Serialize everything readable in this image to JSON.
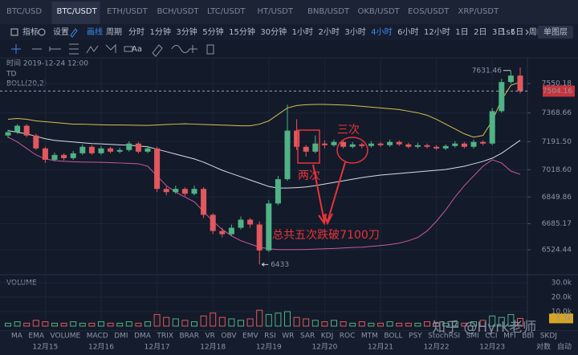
{
  "tabs": [
    "BTC/USD",
    "BTC/USDT",
    "ETH/USDT",
    "BCH/USDT",
    "LTC/USDT",
    "HT/USDT",
    "BNB/USDT",
    "OKB/USDT",
    "EOS/USDT",
    "XRP/USDT"
  ],
  "toolbar": {
    "indicator": "指标",
    "settings": "设置",
    "draw": "画线",
    "period": "周期",
    "intervals": [
      "分时",
      "1分钟",
      "3分钟",
      "5分钟",
      "15分钟",
      "30分钟",
      "1小时",
      "2小时",
      "3小时",
      "4小时",
      "6小时",
      "12小时",
      "1日",
      "2日",
      "3日",
      "5日",
      "周K"
    ],
    "speed": "1s",
    "layer": "单图层"
  },
  "chart_data": {
    "type": "candlestick",
    "time_label": "时间 2019-12-24 12:00",
    "indicator_td": "TD",
    "indicator_boll": "BOLL(20,2)",
    "categories": [
      null,
      null,
      null,
      null,
      "12月15",
      null,
      null,
      null,
      null,
      null,
      "12月16",
      null,
      null,
      null,
      null,
      null,
      "12月17",
      null,
      null,
      null,
      null,
      null,
      "12月18",
      null,
      null,
      null,
      null,
      null,
      "12月19",
      null,
      null,
      null,
      null,
      null,
      "12月20",
      null,
      null,
      null,
      null,
      null,
      "12月21",
      null,
      null,
      null,
      null,
      null,
      "12月22",
      null,
      null,
      null,
      null,
      null,
      "12月23",
      null,
      null,
      null
    ],
    "candles": [
      [
        7230,
        7265,
        7215,
        7250
      ],
      [
        7250,
        7300,
        7240,
        7290
      ],
      [
        7290,
        7300,
        7220,
        7230
      ],
      [
        7230,
        7240,
        7140,
        7150
      ],
      [
        7150,
        7160,
        7060,
        7080
      ],
      [
        7080,
        7125,
        7070,
        7110
      ],
      [
        7110,
        7120,
        7075,
        7090
      ],
      [
        7090,
        7135,
        7080,
        7120
      ],
      [
        7120,
        7175,
        7110,
        7160
      ],
      [
        7160,
        7170,
        7110,
        7120
      ],
      [
        7120,
        7165,
        7110,
        7150
      ],
      [
        7150,
        7160,
        7120,
        7130
      ],
      [
        7130,
        7155,
        7120,
        7140
      ],
      [
        7140,
        7195,
        7130,
        7180
      ],
      [
        7180,
        7190,
        7120,
        7130
      ],
      [
        7130,
        7165,
        7120,
        7150
      ],
      [
        7150,
        7160,
        6880,
        6900
      ],
      [
        6900,
        6915,
        6860,
        6880
      ],
      [
        6880,
        6920,
        6870,
        6900
      ],
      [
        6900,
        6910,
        6855,
        6870
      ],
      [
        6870,
        6920,
        6860,
        6900
      ],
      [
        6900,
        6910,
        6720,
        6740
      ],
      [
        6740,
        6750,
        6620,
        6640
      ],
      [
        6640,
        6660,
        6600,
        6620
      ],
      [
        6620,
        6680,
        6610,
        6660
      ],
      [
        6660,
        6730,
        6650,
        6710
      ],
      [
        6710,
        6720,
        6660,
        6680
      ],
      [
        6680,
        6700,
        6433,
        6520
      ],
      [
        6520,
        6830,
        6510,
        6810
      ],
      [
        6810,
        6980,
        6800,
        6960
      ],
      [
        6960,
        7420,
        6950,
        7260
      ],
      [
        7260,
        7330,
        7140,
        7160
      ],
      [
        7160,
        7170,
        7100,
        7130
      ],
      [
        7130,
        7230,
        7120,
        7180
      ],
      [
        7180,
        7200,
        7150,
        7170
      ],
      [
        7170,
        7205,
        7160,
        7190
      ],
      [
        7190,
        7200,
        7150,
        7160
      ],
      [
        7160,
        7190,
        7150,
        7175
      ],
      [
        7175,
        7185,
        7150,
        7165
      ],
      [
        7165,
        7195,
        7155,
        7180
      ],
      [
        7180,
        7190,
        7160,
        7170
      ],
      [
        7170,
        7205,
        7160,
        7190
      ],
      [
        7190,
        7200,
        7165,
        7175
      ],
      [
        7175,
        7185,
        7150,
        7160
      ],
      [
        7160,
        7185,
        7150,
        7170
      ],
      [
        7170,
        7180,
        7150,
        7160
      ],
      [
        7160,
        7170,
        7140,
        7150
      ],
      [
        7150,
        7175,
        7140,
        7165
      ],
      [
        7165,
        7195,
        7155,
        7180
      ],
      [
        7180,
        7190,
        7150,
        7160
      ],
      [
        7160,
        7205,
        7150,
        7190
      ],
      [
        7190,
        7200,
        7170,
        7180
      ],
      [
        7180,
        7400,
        7170,
        7380
      ],
      [
        7380,
        7580,
        7370,
        7560
      ],
      [
        7560,
        7631.46,
        7550,
        7600
      ],
      [
        7600,
        7650,
        7490,
        7504.16
      ]
    ],
    "up_color": "#4fb386",
    "down_color": "#e2585d",
    "boll_upper": {
      "color": "#d6c34a",
      "values": [
        7330,
        7335,
        7330,
        7320,
        7315,
        7310,
        7305,
        7300,
        7300,
        7298,
        7296,
        7295,
        7295,
        7294,
        7293,
        7292,
        7295,
        7298,
        7300,
        7302,
        7300,
        7298,
        7296,
        7294,
        7292,
        7290,
        7290,
        7300,
        7320,
        7360,
        7400,
        7415,
        7420,
        7422,
        7422,
        7420,
        7418,
        7415,
        7410,
        7405,
        7400,
        7395,
        7390,
        7380,
        7370,
        7355,
        7330,
        7300,
        7270,
        7240,
        7220,
        7230,
        7320,
        7450,
        7540,
        7560
      ]
    },
    "boll_mid": {
      "color": "#d9dde6",
      "values": [
        7260,
        7250,
        7240,
        7225,
        7210,
        7200,
        7195,
        7190,
        7185,
        7180,
        7178,
        7175,
        7172,
        7170,
        7165,
        7160,
        7145,
        7130,
        7115,
        7100,
        7085,
        7065,
        7040,
        7015,
        6995,
        6975,
        6955,
        6935,
        6915,
        6905,
        6905,
        6908,
        6912,
        6920,
        6930,
        6940,
        6950,
        6960,
        6970,
        6978,
        6985,
        6990,
        6995,
        7000,
        7005,
        7010,
        7015,
        7020,
        7030,
        7040,
        7055,
        7070,
        7090,
        7120,
        7160,
        7200
      ]
    },
    "boll_lower": {
      "color": "#c75a9e",
      "values": [
        7220,
        7190,
        7150,
        7110,
        7085,
        7075,
        7070,
        7068,
        7066,
        7065,
        7064,
        7062,
        7060,
        7058,
        7055,
        7040,
        6980,
        6920,
        6880,
        6850,
        6820,
        6760,
        6700,
        6650,
        6610,
        6580,
        6560,
        6540,
        6530,
        6525,
        6525,
        6525,
        6526,
        6528,
        6530,
        6532,
        6535,
        6538,
        6540,
        6545,
        6550,
        6556,
        6565,
        6580,
        6600,
        6640,
        6700,
        6770,
        6850,
        6920,
        6980,
        7040,
        7080,
        7060,
        7010,
        6990
      ]
    },
    "ylim": [
      6380,
      7660
    ],
    "yticks": [
      7550.18,
      7368.66,
      {
        "value": 7191.5,
        "label": "7191.50"
      },
      {
        "value": 7018.6,
        "label": "7018.60"
      },
      6849.86,
      6685.17,
      6524.44
    ],
    "last_price": 7504.16,
    "high_label": 7631.46,
    "low_label": 6433,
    "annotations": {
      "twice": "两次",
      "thrice": "三次",
      "total": "总共五次跌破7100刀"
    },
    "volume": {
      "title": "VOLUME",
      "ylim": [
        0,
        33000
      ],
      "yticks": [
        {
          "value": 30000,
          "label": "30.0k"
        },
        {
          "value": 20000,
          "label": "20.0k"
        },
        {
          "value": 10000,
          "label": "10.0k"
        }
      ],
      "values": [
        2000,
        3000,
        2000,
        4000,
        3000,
        2000,
        2000,
        3000,
        2000,
        2000,
        3000,
        2000,
        2000,
        3000,
        2000,
        3000,
        8000,
        6000,
        5000,
        4000,
        3000,
        7000,
        9000,
        6000,
        5000,
        4000,
        5000,
        11000,
        8000,
        9000,
        10000,
        6000,
        5000,
        4000,
        3000,
        4000,
        3000,
        2000,
        3000,
        2000,
        2000,
        3000,
        2000,
        2000,
        2000,
        3000,
        2000,
        2000,
        3000,
        2000,
        3000,
        4000,
        7000,
        6000,
        8000,
        5300
      ],
      "current": {
        "value": 5300,
        "label": "5.3k"
      }
    }
  },
  "indicator_tabs": [
    "MA",
    "EMA",
    "VOLUME",
    "MACD",
    "DMI",
    "DMA",
    "TRIX",
    "BRAR",
    "VR",
    "OBV",
    "EMV",
    "RSI",
    "WR",
    "SAR",
    "KDJ",
    "ROC",
    "MTM",
    "BOLL",
    "PSY",
    "StochRSI",
    "SMI",
    "CCI",
    "MFI",
    "BBI",
    "SKDJ"
  ],
  "footer": {
    "log": "对数",
    "auto": "自动"
  },
  "watermark": "知乎 @Hyrk老师"
}
